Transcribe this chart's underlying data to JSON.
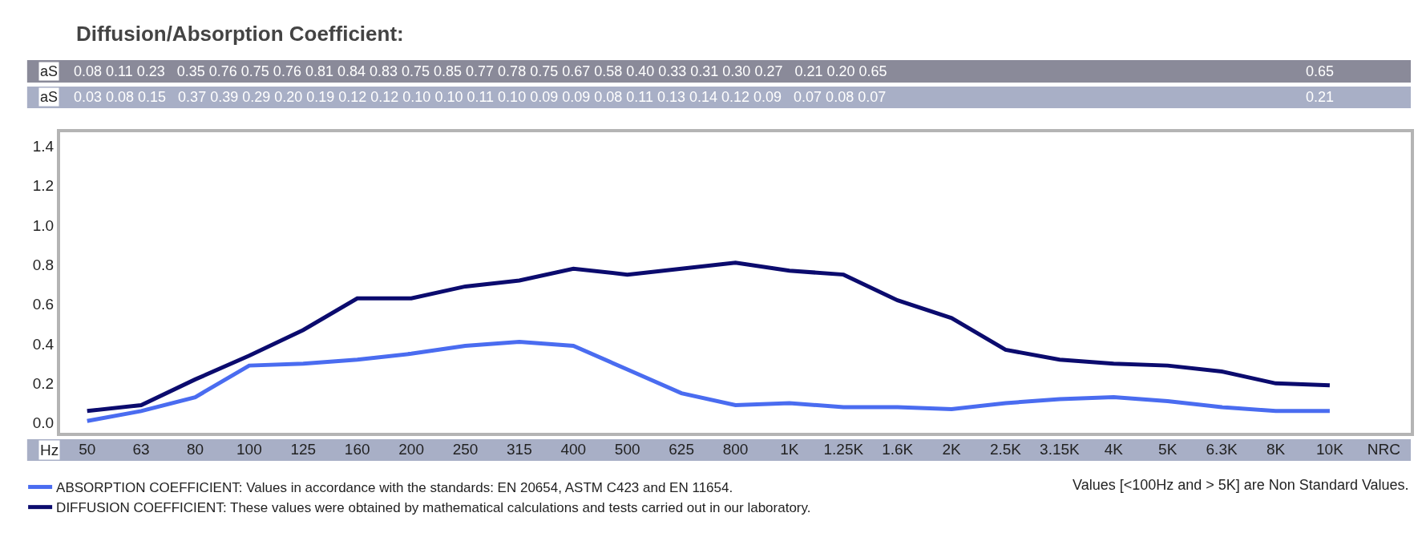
{
  "chart_data": {
    "type": "line",
    "title": "Diffusion/Absorption Coefficient:",
    "xlabel": "Hz",
    "categories": [
      "50",
      "63",
      "80",
      "100",
      "125",
      "160",
      "200",
      "250",
      "315",
      "400",
      "500",
      "625",
      "800",
      "1K",
      "1.25K",
      "1.6K",
      "2K",
      "2.5K",
      "3.15K",
      "4K",
      "5K",
      "6.3K",
      "8K",
      "10K",
      "NRC"
    ],
    "series": [
      {
        "name": "ABSORPTION COEFFICIENT: Values in accordance with the standards: EN 20654, ASTM C423 and EN 11654.",
        "color": "#4a6cf0",
        "values": [
          0.01,
          0.06,
          0.13,
          0.29,
          0.3,
          0.32,
          0.35,
          0.39,
          0.41,
          0.39,
          0.27,
          0.15,
          0.09,
          0.1,
          0.08,
          0.08,
          0.07,
          0.1,
          0.12,
          0.13,
          0.11,
          0.08,
          0.06,
          0.06,
          null
        ]
      },
      {
        "name": "DIFFUSION COEFFICIENT: These values were obtained by mathematical calculations and tests carried out in our laboratory.",
        "color": "#0b0b6e",
        "values": [
          0.06,
          0.09,
          0.22,
          0.34,
          0.47,
          0.63,
          0.63,
          0.69,
          0.72,
          0.78,
          0.75,
          0.78,
          0.81,
          0.77,
          0.75,
          0.62,
          0.53,
          0.37,
          0.32,
          0.3,
          0.29,
          0.26,
          0.2,
          0.19,
          null
        ]
      }
    ],
    "ylim": [
      -0.05,
      1.47
    ],
    "yticks": [
      {
        "value": 0,
        "label": "0.0"
      },
      0.2,
      0.4,
      0.6,
      0.8,
      {
        "value": 1,
        "label": "1.0"
      },
      1.2,
      1.4
    ],
    "legend": "bottom left",
    "marker": "none",
    "line_style": "solid",
    "annotations": [
      "aS",
      "0.08 0.11 0.23   0.35 0.76 0.75 0.76 0.81 0.84 0.83 0.75 0.85 0.77 0.78 0.75 0.67 0.58 0.40 0.33 0.31 0.30 0.27   0.21 0.20 0.65",
      "0.65",
      "aS",
      "0.03 0.08 0.15   0.37 0.39 0.29 0.20 0.19 0.12 0.12 0.10 0.10 0.11 0.10 0.09 0.09 0.08 0.11 0.13 0.14 0.12 0.09   0.07 0.08 0.07",
      "0.21",
      "Values [<100Hz and > 5K] are Non Standard Values."
    ]
  }
}
